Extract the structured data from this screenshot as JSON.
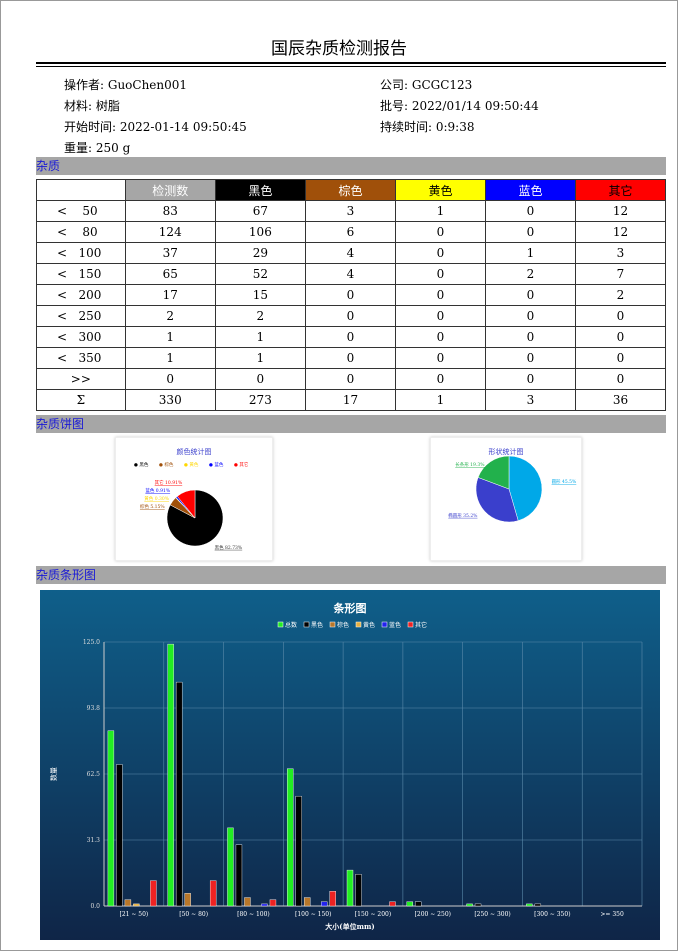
{
  "title": "国辰杂质检测报告",
  "info": {
    "operator": "操作者: GuoChen001",
    "company": "公司: GCGC123",
    "material": "材料: 树脂",
    "batch": "批号: 2022/01/14 09:50:44",
    "start": "开始时间: 2022-01-14 09:50:45",
    "duration": "持续时间: 0:9:38",
    "weight": "重量: 250 g"
  },
  "sections": {
    "impurity": "杂质",
    "pie": "杂质饼图",
    "bar": "杂质条形图"
  },
  "table": {
    "headers": [
      "",
      "检测数",
      "黑色",
      "棕色",
      "黄色",
      "蓝色",
      "其它"
    ],
    "header_colors": [
      "#ffffff",
      "#a6a6a6",
      "#000000",
      "#a0500a",
      "#ffff00",
      "#0000ff",
      "#ff0000"
    ],
    "rows": [
      [
        "<    50",
        "83",
        "67",
        "3",
        "1",
        "0",
        "12"
      ],
      [
        "<    80",
        "124",
        "106",
        "6",
        "0",
        "0",
        "12"
      ],
      [
        "<   100",
        "37",
        "29",
        "4",
        "0",
        "1",
        "3"
      ],
      [
        "<   150",
        "65",
        "52",
        "4",
        "0",
        "2",
        "7"
      ],
      [
        "<   200",
        "17",
        "15",
        "0",
        "0",
        "0",
        "2"
      ],
      [
        "<   250",
        "2",
        "2",
        "0",
        "0",
        "0",
        "0"
      ],
      [
        "<   300",
        "1",
        "1",
        "0",
        "0",
        "0",
        "0"
      ],
      [
        "<   350",
        "1",
        "1",
        "0",
        "0",
        "0",
        "0"
      ],
      [
        ">>",
        "0",
        "0",
        "0",
        "0",
        "0",
        "0"
      ],
      [
        "Σ",
        "330",
        "273",
        "17",
        "1",
        "3",
        "36"
      ]
    ]
  },
  "chart_data": [
    {
      "type": "pie",
      "title": "颜色统计图",
      "legend": [
        "黑色",
        "棕色",
        "黄色",
        "蓝色",
        "其它"
      ],
      "slices": [
        {
          "name": "黑色",
          "value": 82.73,
          "label": "黑色 82.73%",
          "color": "#000000"
        },
        {
          "name": "棕色",
          "value": 5.15,
          "label": "棕色 5.15%",
          "color": "#a0500a"
        },
        {
          "name": "黄色",
          "value": 0.3,
          "label": "黄色 0.30%",
          "color": "#ffd700"
        },
        {
          "name": "蓝色",
          "value": 0.91,
          "label": "蓝色 0.91%",
          "color": "#0000ff"
        },
        {
          "name": "其它",
          "value": 10.91,
          "label": "其它 10.91%",
          "color": "#ff0000"
        }
      ]
    },
    {
      "type": "pie",
      "title": "形状统计图",
      "slices": [
        {
          "name": "圆形",
          "value": 45.5,
          "label": "圆形 45.5%",
          "color": "#00a8e8"
        },
        {
          "name": "椭圆形",
          "value": 35.2,
          "label": "椭圆形 35.2%",
          "color": "#3a3fcc"
        },
        {
          "name": "长条形",
          "value": 19.3,
          "label": "长条形 19.3%",
          "color": "#22b14c"
        }
      ]
    },
    {
      "type": "bar",
      "title": "条形图",
      "xlabel": "大小(单位mm)",
      "ylabel": "数量",
      "ylim": [
        0,
        125
      ],
      "yticks": [
        "0.0",
        "31.3",
        "62.5",
        "93.8",
        "125.0"
      ],
      "categories": [
        "[21 ~ 50)",
        "[50 ~ 80)",
        "[80 ~ 100)",
        "[100 ~ 150)",
        "[150 ~ 200)",
        "[200 ~ 250)",
        "[250 ~ 300)",
        "[300 ~ 350)",
        ">= 350"
      ],
      "series": [
        {
          "name": "总数",
          "color": "#22ee22",
          "values": [
            83,
            124,
            37,
            65,
            17,
            2,
            1,
            1,
            0
          ]
        },
        {
          "name": "黑色",
          "color": "#000000",
          "values": [
            67,
            106,
            29,
            52,
            15,
            2,
            1,
            1,
            0
          ]
        },
        {
          "name": "棕色",
          "color": "#b8772a",
          "values": [
            3,
            6,
            4,
            4,
            0,
            0,
            0,
            0,
            0
          ]
        },
        {
          "name": "黄色",
          "color": "#e8b040",
          "values": [
            1,
            0,
            0,
            0,
            0,
            0,
            0,
            0,
            0
          ]
        },
        {
          "name": "蓝色",
          "color": "#2222ee",
          "values": [
            0,
            0,
            1,
            2,
            0,
            0,
            0,
            0,
            0
          ]
        },
        {
          "name": "其它",
          "color": "#ee2222",
          "values": [
            12,
            12,
            3,
            7,
            2,
            0,
            0,
            0,
            0
          ]
        }
      ]
    }
  ]
}
